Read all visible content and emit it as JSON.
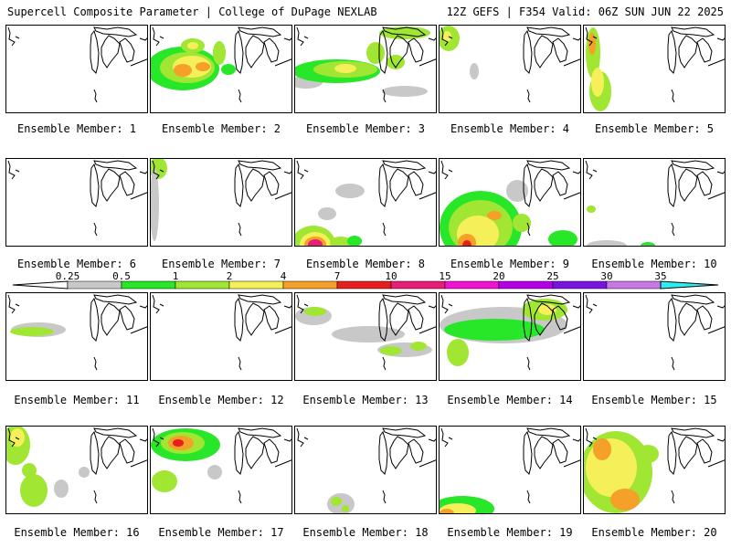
{
  "header": {
    "left": "Supercell Composite Parameter | College of DuPage NEXLAB",
    "right": "12Z GEFS | F354 Valid: 06Z SUN JUN 22 2025"
  },
  "member_label_prefix": "Ensemble Member:",
  "members": [
    {
      "number": "1",
      "blobs": []
    },
    {
      "number": "2",
      "blobs": [
        {
          "x": 15,
          "y": 50,
          "rx": 14,
          "ry": 12,
          "level": 1
        },
        {
          "x": 35,
          "y": 47,
          "rx": 40,
          "ry": 24,
          "level": 1
        },
        {
          "x": 40,
          "y": 46,
          "rx": 30,
          "ry": 17,
          "level": 2
        },
        {
          "x": 45,
          "y": 45,
          "rx": 21,
          "ry": 12,
          "level": 3
        },
        {
          "x": 35,
          "y": 49,
          "rx": 10,
          "ry": 7,
          "level": 4
        },
        {
          "x": 57,
          "y": 45,
          "rx": 8,
          "ry": 5,
          "level": 4
        },
        {
          "x": 46,
          "y": 22,
          "rx": 13,
          "ry": 8,
          "level": 2
        },
        {
          "x": 46,
          "y": 22,
          "rx": 6,
          "ry": 4,
          "level": 3
        },
        {
          "x": 75,
          "y": 30,
          "rx": 7,
          "ry": 13,
          "level": 2
        },
        {
          "x": 85,
          "y": 48,
          "rx": 8,
          "ry": 6,
          "level": 1
        }
      ]
    },
    {
      "number": "3",
      "blobs": [
        {
          "x": 12,
          "y": 62,
          "rx": 18,
          "ry": 7,
          "level": 0
        },
        {
          "x": 45,
          "y": 50,
          "rx": 48,
          "ry": 13,
          "level": 1
        },
        {
          "x": 55,
          "y": 48,
          "rx": 35,
          "ry": 9,
          "level": 2
        },
        {
          "x": 55,
          "y": 47,
          "rx": 12,
          "ry": 5,
          "level": 3
        },
        {
          "x": 88,
          "y": 30,
          "rx": 10,
          "ry": 12,
          "level": 2
        },
        {
          "x": 110,
          "y": 40,
          "rx": 10,
          "ry": 8,
          "level": 2
        },
        {
          "x": 120,
          "y": 8,
          "rx": 28,
          "ry": 7,
          "level": 2
        },
        {
          "x": 120,
          "y": 72,
          "rx": 25,
          "ry": 6,
          "level": 0
        }
      ]
    },
    {
      "number": "4",
      "blobs": [
        {
          "x": 10,
          "y": 14,
          "rx": 12,
          "ry": 14,
          "level": 2
        },
        {
          "x": 8,
          "y": 12,
          "rx": 5,
          "ry": 6,
          "level": 3
        },
        {
          "x": 38,
          "y": 50,
          "rx": 5,
          "ry": 9,
          "level": 0
        }
      ]
    },
    {
      "number": "5",
      "blobs": [
        {
          "x": 10,
          "y": 30,
          "rx": 8,
          "ry": 28,
          "level": 2
        },
        {
          "x": 18,
          "y": 72,
          "rx": 12,
          "ry": 22,
          "level": 2
        },
        {
          "x": 15,
          "y": 62,
          "rx": 7,
          "ry": 16,
          "level": 3
        },
        {
          "x": 9,
          "y": 20,
          "rx": 4,
          "ry": 12,
          "level": 4
        }
      ]
    },
    {
      "number": "6",
      "blobs": []
    },
    {
      "number": "7",
      "blobs": [
        {
          "x": 8,
          "y": 10,
          "rx": 10,
          "ry": 12,
          "level": 2
        },
        {
          "x": 4,
          "y": 50,
          "rx": 5,
          "ry": 40,
          "level": 0
        }
      ]
    },
    {
      "number": "8",
      "blobs": [
        {
          "x": 20,
          "y": 93,
          "rx": 24,
          "ry": 20,
          "level": 2
        },
        {
          "x": 22,
          "y": 94,
          "rx": 17,
          "ry": 14,
          "level": 3
        },
        {
          "x": 22,
          "y": 94,
          "rx": 12,
          "ry": 9,
          "level": 4
        },
        {
          "x": 22,
          "y": 94,
          "rx": 8,
          "ry": 6,
          "level": 6
        },
        {
          "x": 50,
          "y": 92,
          "rx": 12,
          "ry": 7,
          "level": 2
        },
        {
          "x": 35,
          "y": 60,
          "rx": 10,
          "ry": 7,
          "level": 0
        },
        {
          "x": 60,
          "y": 35,
          "rx": 16,
          "ry": 8,
          "level": 0
        },
        {
          "x": 65,
          "y": 90,
          "rx": 8,
          "ry": 6,
          "level": 1
        }
      ]
    },
    {
      "number": "9",
      "blobs": [
        {
          "x": 45,
          "y": 75,
          "rx": 45,
          "ry": 40,
          "level": 1
        },
        {
          "x": 45,
          "y": 75,
          "rx": 35,
          "ry": 30,
          "level": 2
        },
        {
          "x": 42,
          "y": 82,
          "rx": 23,
          "ry": 20,
          "level": 3
        },
        {
          "x": 30,
          "y": 92,
          "rx": 10,
          "ry": 10,
          "level": 4
        },
        {
          "x": 30,
          "y": 95,
          "rx": 5,
          "ry": 6,
          "level": 5
        },
        {
          "x": 60,
          "y": 62,
          "rx": 8,
          "ry": 5,
          "level": 4
        },
        {
          "x": 85,
          "y": 35,
          "rx": 12,
          "ry": 12,
          "level": 0
        },
        {
          "x": 90,
          "y": 70,
          "rx": 10,
          "ry": 10,
          "level": 2
        },
        {
          "x": 135,
          "y": 88,
          "rx": 16,
          "ry": 10,
          "level": 1
        }
      ]
    },
    {
      "number": "10",
      "blobs": [
        {
          "x": 25,
          "y": 95,
          "rx": 22,
          "ry": 6,
          "level": 0
        },
        {
          "x": 70,
          "y": 95,
          "rx": 8,
          "ry": 4,
          "level": 1
        },
        {
          "x": 8,
          "y": 55,
          "rx": 5,
          "ry": 4,
          "level": 2
        }
      ]
    },
    {
      "number": "11",
      "blobs": [
        {
          "x": 35,
          "y": 40,
          "rx": 30,
          "ry": 8,
          "level": 0
        },
        {
          "x": 28,
          "y": 42,
          "rx": 24,
          "ry": 5,
          "level": 2
        }
      ]
    },
    {
      "number": "12",
      "blobs": []
    },
    {
      "number": "13",
      "blobs": [
        {
          "x": 20,
          "y": 25,
          "rx": 20,
          "ry": 10,
          "level": 0
        },
        {
          "x": 22,
          "y": 20,
          "rx": 12,
          "ry": 5,
          "level": 2
        },
        {
          "x": 80,
          "y": 45,
          "rx": 40,
          "ry": 9,
          "level": 0
        },
        {
          "x": 120,
          "y": 62,
          "rx": 30,
          "ry": 8,
          "level": 0
        },
        {
          "x": 105,
          "y": 63,
          "rx": 12,
          "ry": 5,
          "level": 2
        },
        {
          "x": 135,
          "y": 58,
          "rx": 9,
          "ry": 5,
          "level": 2
        }
      ]
    },
    {
      "number": "14",
      "blobs": [
        {
          "x": 70,
          "y": 35,
          "rx": 70,
          "ry": 20,
          "level": 0
        },
        {
          "x": 60,
          "y": 40,
          "rx": 55,
          "ry": 12,
          "level": 1
        },
        {
          "x": 115,
          "y": 18,
          "rx": 25,
          "ry": 12,
          "level": 2
        },
        {
          "x": 118,
          "y": 18,
          "rx": 10,
          "ry": 6,
          "level": 3
        },
        {
          "x": 20,
          "y": 65,
          "rx": 12,
          "ry": 15,
          "level": 2
        }
      ]
    },
    {
      "number": "15",
      "blobs": []
    },
    {
      "number": "16",
      "blobs": [
        {
          "x": 10,
          "y": 20,
          "rx": 16,
          "ry": 22,
          "level": 2
        },
        {
          "x": 12,
          "y": 12,
          "rx": 8,
          "ry": 10,
          "level": 3
        },
        {
          "x": 30,
          "y": 70,
          "rx": 15,
          "ry": 18,
          "level": 2
        },
        {
          "x": 25,
          "y": 48,
          "rx": 8,
          "ry": 8,
          "level": 2
        },
        {
          "x": 60,
          "y": 68,
          "rx": 8,
          "ry": 10,
          "level": 0
        },
        {
          "x": 85,
          "y": 50,
          "rx": 6,
          "ry": 6,
          "level": 0
        }
      ]
    },
    {
      "number": "17",
      "blobs": [
        {
          "x": 38,
          "y": 20,
          "rx": 38,
          "ry": 18,
          "level": 1
        },
        {
          "x": 35,
          "y": 18,
          "rx": 24,
          "ry": 12,
          "level": 2
        },
        {
          "x": 33,
          "y": 18,
          "rx": 14,
          "ry": 8,
          "level": 4
        },
        {
          "x": 30,
          "y": 18,
          "rx": 6,
          "ry": 4,
          "level": 5
        },
        {
          "x": 15,
          "y": 60,
          "rx": 14,
          "ry": 12,
          "level": 2
        },
        {
          "x": 70,
          "y": 50,
          "rx": 8,
          "ry": 8,
          "level": 0
        }
      ]
    },
    {
      "number": "18",
      "blobs": [
        {
          "x": 50,
          "y": 85,
          "rx": 15,
          "ry": 12,
          "level": 0
        },
        {
          "x": 45,
          "y": 82,
          "rx": 6,
          "ry": 5,
          "level": 2
        },
        {
          "x": 55,
          "y": 90,
          "rx": 4,
          "ry": 4,
          "level": 2
        }
      ]
    },
    {
      "number": "19",
      "blobs": [
        {
          "x": 25,
          "y": 90,
          "rx": 35,
          "ry": 14,
          "level": 1
        },
        {
          "x": 20,
          "y": 92,
          "rx": 20,
          "ry": 8,
          "level": 3
        },
        {
          "x": 8,
          "y": 95,
          "rx": 8,
          "ry": 5,
          "level": 4
        }
      ]
    },
    {
      "number": "20",
      "blobs": [
        {
          "x": 35,
          "y": 50,
          "rx": 40,
          "ry": 45,
          "level": 2
        },
        {
          "x": 30,
          "y": 45,
          "rx": 28,
          "ry": 32,
          "level": 3
        },
        {
          "x": 20,
          "y": 25,
          "rx": 10,
          "ry": 12,
          "level": 4
        },
        {
          "x": 45,
          "y": 80,
          "rx": 16,
          "ry": 12,
          "level": 4
        },
        {
          "x": 70,
          "y": 30,
          "rx": 12,
          "ry": 10,
          "level": 2
        }
      ]
    }
  ],
  "colorbar": {
    "labels": [
      "0.25",
      "0.5",
      "1",
      "2",
      "4",
      "7",
      "10",
      "15",
      "20",
      "25",
      "30",
      "35"
    ],
    "colors": [
      "#c8c8c8",
      "#28e628",
      "#a0e632",
      "#f5f05a",
      "#f5a028",
      "#e61e1e",
      "#e61e78",
      "#f014d2",
      "#b400e6",
      "#7814dc",
      "#c878e6",
      "#28f0f0"
    ]
  },
  "colors": {
    "outline": "#000000",
    "background": "#ffffff"
  }
}
